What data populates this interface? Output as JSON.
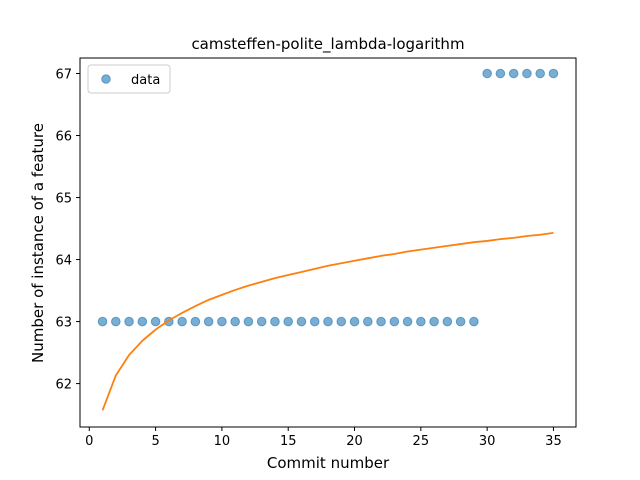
{
  "chart_data": {
    "type": "scatter",
    "title": "camsteffen-polite_lambda-logarithm",
    "xlabel": "Commit number",
    "ylabel": "Number of instance of a feature",
    "xlim": [
      -0.7,
      36.7
    ],
    "ylim": [
      61.3,
      67.25
    ],
    "xticks": [
      0,
      5,
      10,
      15,
      20,
      25,
      30,
      35
    ],
    "yticks": [
      62,
      63,
      64,
      65,
      66,
      67
    ],
    "grid": false,
    "legend_position": "upper-left",
    "series": [
      {
        "name": "data",
        "kind": "scatter",
        "color": "#1f77b4",
        "x": [
          1,
          2,
          3,
          4,
          5,
          6,
          7,
          8,
          9,
          10,
          11,
          12,
          13,
          14,
          15,
          16,
          17,
          18,
          19,
          20,
          21,
          22,
          23,
          24,
          25,
          26,
          27,
          28,
          29,
          30,
          31,
          32,
          33,
          34,
          35
        ],
        "y": [
          63,
          63,
          63,
          63,
          63,
          63,
          63,
          63,
          63,
          63,
          63,
          63,
          63,
          63,
          63,
          63,
          63,
          63,
          63,
          63,
          63,
          63,
          63,
          63,
          63,
          63,
          63,
          63,
          63,
          67,
          67,
          67,
          67,
          67,
          67
        ]
      },
      {
        "kind": "line",
        "color": "#ff7f0e",
        "x": [
          1,
          2,
          3,
          4,
          5,
          6,
          7,
          8,
          9,
          10,
          11,
          12,
          13,
          14,
          15,
          16,
          17,
          18,
          19,
          20,
          21,
          22,
          23,
          24,
          25,
          26,
          27,
          28,
          29,
          30,
          31,
          32,
          33,
          34,
          35
        ],
        "y": [
          61.57,
          62.13,
          62.46,
          62.69,
          62.87,
          63.02,
          63.14,
          63.25,
          63.35,
          63.43,
          63.51,
          63.58,
          63.64,
          63.7,
          63.75,
          63.8,
          63.85,
          63.9,
          63.94,
          63.98,
          64.02,
          64.06,
          64.09,
          64.13,
          64.16,
          64.19,
          64.22,
          64.25,
          64.28,
          64.3,
          64.33,
          64.35,
          64.38,
          64.4,
          64.43
        ]
      }
    ]
  }
}
